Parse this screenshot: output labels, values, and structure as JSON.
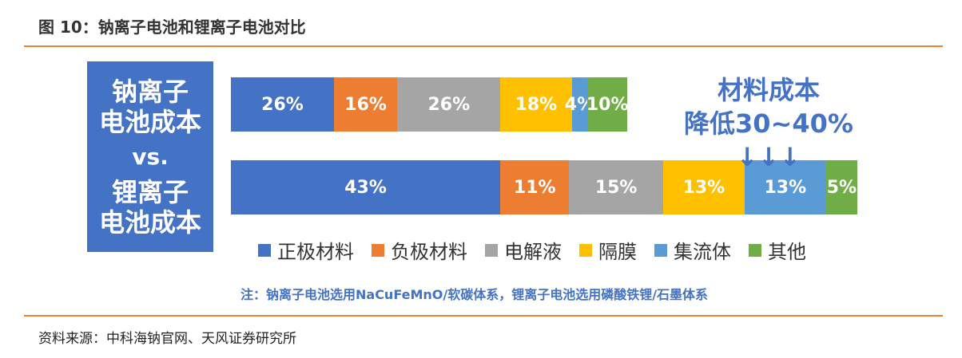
{
  "header": {
    "figure_title": "图 10：钠离子电池和锂离子电池对比"
  },
  "side_panel": {
    "line1": "钠离子",
    "line2": "电池成本",
    "vs": "vs.",
    "line3": "锂离子",
    "line4": "电池成本"
  },
  "callout": {
    "line1": "材料成本",
    "line2": "降低30~40% ↓↓↓"
  },
  "note": "注：钠离子电池选用NaCuFeMnO/软碳体系，锂离子电池选用磷酸铁锂/石墨体系",
  "source": "资料来源：中科海钠官网、天风证券研究所",
  "chart_data": {
    "type": "bar",
    "orientation": "horizontal",
    "stacked": true,
    "unit": "%",
    "categories": [
      "钠离子电池成本",
      "锂离子电池成本"
    ],
    "series": [
      {
        "name": "正极材料",
        "color": "#4472c4",
        "values": [
          26,
          43
        ],
        "labels": [
          "26%",
          "43%"
        ]
      },
      {
        "name": "负极材料",
        "color": "#ed7d31",
        "values": [
          16,
          11
        ],
        "labels": [
          "16%",
          "11%"
        ]
      },
      {
        "name": "电解液",
        "color": "#a5a5a5",
        "values": [
          26,
          15
        ],
        "labels": [
          "26%",
          "15%"
        ]
      },
      {
        "name": "隔膜",
        "color": "#ffc000",
        "values": [
          18,
          13
        ],
        "labels": [
          "18%",
          "13%"
        ]
      },
      {
        "name": "集流体",
        "color": "#5b9bd5",
        "values": [
          4,
          13
        ],
        "labels": [
          "4%",
          "13%"
        ]
      },
      {
        "name": "其他",
        "color": "#70ad47",
        "values": [
          10,
          5
        ],
        "labels": [
          "10%",
          "5%"
        ]
      }
    ],
    "legend_position": "bottom"
  }
}
